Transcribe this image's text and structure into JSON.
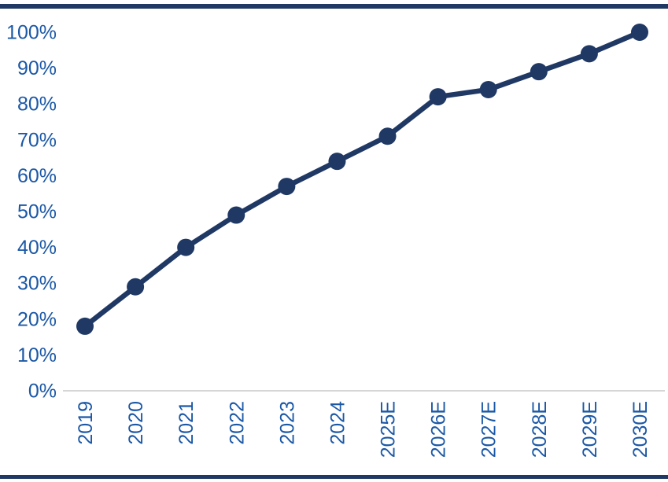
{
  "chart_data": {
    "type": "line",
    "title": "",
    "xlabel": "",
    "ylabel": "",
    "categories": [
      "2019",
      "2020",
      "2021",
      "2022",
      "2023",
      "2024",
      "2025E",
      "2026E",
      "2027E",
      "2028E",
      "2029E",
      "2030E"
    ],
    "values": [
      18,
      29,
      40,
      49,
      57,
      64,
      71,
      82,
      84,
      89,
      94,
      100
    ],
    "ylim": [
      0,
      100
    ],
    "y_ticks": [
      0,
      10,
      20,
      30,
      40,
      50,
      60,
      70,
      80,
      90,
      100
    ],
    "y_tick_labels": [
      "0%",
      "10%",
      "20%",
      "30%",
      "40%",
      "50%",
      "60%",
      "70%",
      "80%",
      "90%",
      "100%"
    ],
    "grid": false,
    "legend": false,
    "marker": "circle",
    "colors": {
      "line": "#1F3864",
      "marker": "#1F3864",
      "tick_label": "#1B58A6",
      "axis_line": "#C9C9C9",
      "frame_rule": "#1F3864",
      "background": "#FFFFFF"
    }
  }
}
